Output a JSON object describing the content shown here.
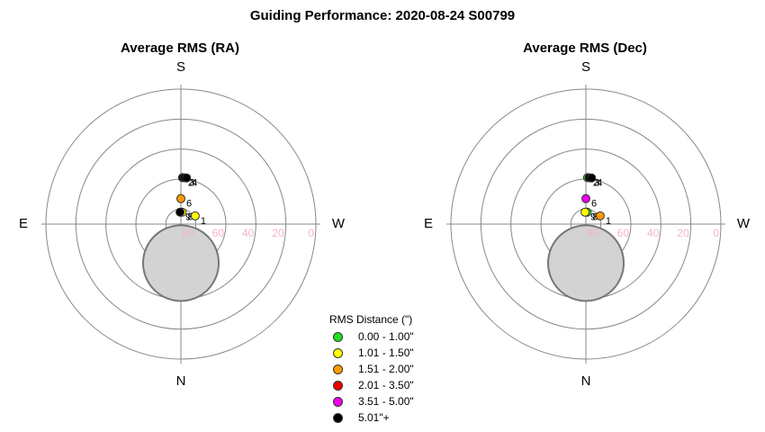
{
  "figure_title": "Guiding Performance: 2020-08-24 S00799",
  "compass": {
    "top": "S",
    "bottom": "N",
    "left": "E",
    "right": "W"
  },
  "colors": {
    "ring": "#888888",
    "axis": "#888888",
    "radial_label": "#f4b6c2",
    "moon_fill": "#d3d3d3",
    "moon_stroke": "#777777"
  },
  "legend": {
    "title": "RMS Distance (\")",
    "items": [
      {
        "label": "0.00 - 1.00\"",
        "color": "#22dd22"
      },
      {
        "label": "1.01 - 1.50\"",
        "color": "#ffff00"
      },
      {
        "label": "1.51 - 2.00\"",
        "color": "#ff9900"
      },
      {
        "label": "2.01 - 3.50\"",
        "color": "#ee0000"
      },
      {
        "label": "3.51 - 5.00\"",
        "color": "#ee00ee"
      },
      {
        "label": "5.01\"+",
        "color": "#000000"
      }
    ]
  },
  "chart_data": [
    {
      "type": "scatter",
      "projection": "polar (altitude / azimuth)",
      "title": "Average RMS (RA)",
      "radial_axis": {
        "ticks": [
          80,
          60,
          40,
          20,
          0
        ],
        "range": [
          90,
          0
        ]
      },
      "moon": {
        "altitude": 64,
        "azimuth": 180
      },
      "points": [
        {
          "label": "2",
          "altitude": 59,
          "azimuth": 2,
          "color": "#000000"
        },
        {
          "label": "3",
          "altitude": 59,
          "azimuth": 4,
          "color": "#000000"
        },
        {
          "label": "4",
          "altitude": 59,
          "azimuth": 7,
          "color": "#000000"
        },
        {
          "label": "6",
          "altitude": 73,
          "azimuth": 0,
          "color": "#ff9900"
        },
        {
          "label": "8",
          "altitude": 82,
          "azimuth": 6,
          "color": "#ffff00"
        },
        {
          "label": "9",
          "altitude": 82,
          "azimuth": 356,
          "color": "#000000"
        },
        {
          "label": "1",
          "altitude": 79,
          "azimuth": 60,
          "color": "#ffff00"
        }
      ]
    },
    {
      "type": "scatter",
      "projection": "polar (altitude / azimuth)",
      "title": "Average RMS (Dec)",
      "radial_axis": {
        "ticks": [
          80,
          60,
          40,
          20,
          0
        ],
        "range": [
          90,
          0
        ]
      },
      "moon": {
        "altitude": 64,
        "azimuth": 180
      },
      "points": [
        {
          "label": "2",
          "altitude": 59,
          "azimuth": 2,
          "color": "#22dd22"
        },
        {
          "label": "3",
          "altitude": 59,
          "azimuth": 4,
          "color": "#000000"
        },
        {
          "label": "4",
          "altitude": 59,
          "azimuth": 7,
          "color": "#000000"
        },
        {
          "label": "6",
          "altitude": 73,
          "azimuth": 0,
          "color": "#ee00ee"
        },
        {
          "label": "8",
          "altitude": 82,
          "azimuth": 6,
          "color": "#22dd22"
        },
        {
          "label": "9",
          "altitude": 82,
          "azimuth": 356,
          "color": "#ffff00"
        },
        {
          "label": "1",
          "altitude": 79,
          "azimuth": 60,
          "color": "#ff9900"
        }
      ]
    }
  ]
}
